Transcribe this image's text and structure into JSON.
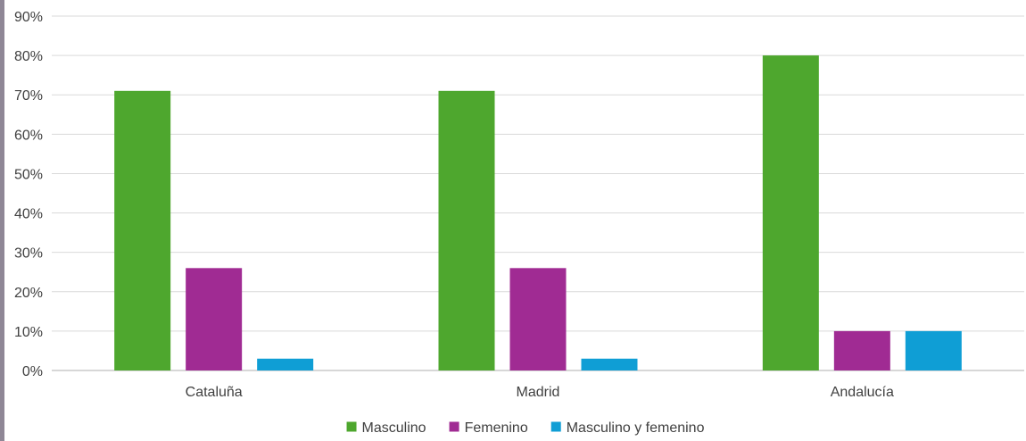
{
  "chart_data": {
    "type": "bar",
    "categories": [
      "Cataluña",
      "Madrid",
      "Andalucía"
    ],
    "series": [
      {
        "name": "Masculino",
        "values": [
          71,
          71,
          80
        ],
        "color": "#4ea72e"
      },
      {
        "name": "Femenino",
        "values": [
          26,
          26,
          10
        ],
        "color": "#a02b93"
      },
      {
        "name": "Masculino y femenino",
        "values": [
          3,
          3,
          10
        ],
        "color": "#0f9ed5"
      }
    ],
    "ylim": [
      0,
      90
    ],
    "yticks": [
      "0%",
      "10%",
      "20%",
      "30%",
      "40%",
      "50%",
      "60%",
      "70%",
      "80%",
      "90%"
    ],
    "ytick_values": [
      0,
      10,
      20,
      30,
      40,
      50,
      60,
      70,
      80,
      90
    ],
    "grid": true,
    "legend_position": "bottom"
  }
}
